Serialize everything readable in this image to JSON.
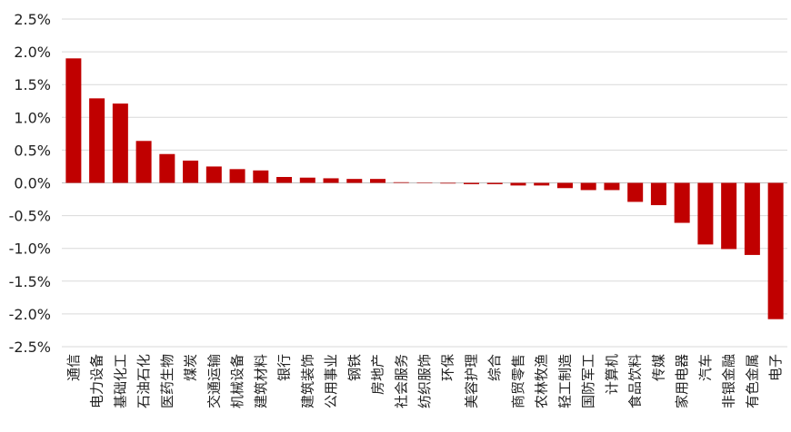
{
  "chart_data": {
    "type": "bar",
    "categories": [
      "通信",
      "电力设备",
      "基础化工",
      "石油石化",
      "医药生物",
      "煤炭",
      "交通运输",
      "机械设备",
      "建筑材料",
      "银行",
      "建筑装饰",
      "公用事业",
      "钢铁",
      "房地产",
      "社会服务",
      "纺织服饰",
      "环保",
      "美容护理",
      "综合",
      "商贸零售",
      "农林牧渔",
      "轻工制造",
      "国防军工",
      "计算机",
      "食品饮料",
      "传媒",
      "家用电器",
      "汽车",
      "非银金融",
      "有色金属",
      "电子"
    ],
    "values": [
      1.9,
      1.29,
      1.21,
      0.64,
      0.44,
      0.34,
      0.25,
      0.21,
      0.19,
      0.09,
      0.08,
      0.07,
      0.06,
      0.06,
      0.01,
      0.0,
      -0.01,
      -0.02,
      -0.02,
      -0.04,
      -0.04,
      -0.08,
      -0.11,
      -0.11,
      -0.29,
      -0.34,
      -0.61,
      -0.94,
      -1.01,
      -1.1,
      -2.08
    ],
    "ylim": [
      -2.5,
      2.5
    ],
    "yticks": [
      "2.5%",
      "2.0%",
      "1.5%",
      "1.0%",
      "0.5%",
      "0.0%",
      "-0.5%",
      "-1.0%",
      "-1.5%",
      "-2.0%",
      "-2.5%"
    ],
    "ytick_values": [
      2.5,
      2.0,
      1.5,
      1.0,
      0.5,
      0.0,
      -0.5,
      -1.0,
      -1.5,
      -2.0,
      -2.5
    ],
    "grid": true,
    "bar_color": "#C00000",
    "title": "",
    "xlabel": "",
    "ylabel": ""
  }
}
